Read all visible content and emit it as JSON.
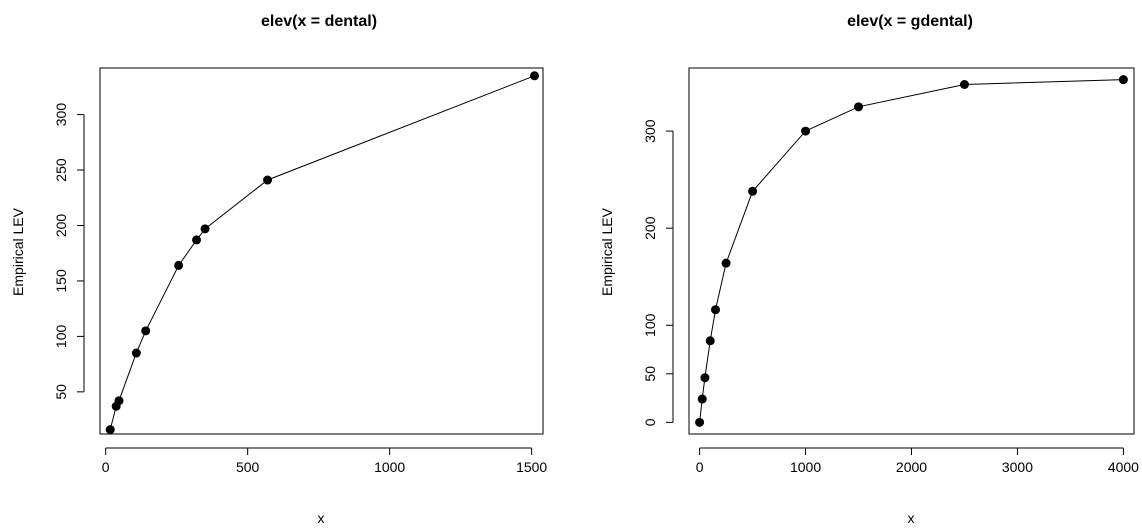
{
  "chart_data": [
    {
      "type": "line",
      "title": "elev(x = dental)",
      "xlabel": "x",
      "ylabel": "Empirical LEV",
      "xlim": [
        -20,
        1540
      ],
      "ylim": [
        12,
        342
      ],
      "xticks": [
        0,
        500,
        1000,
        1500
      ],
      "yticks": [
        50,
        100,
        150,
        200,
        250,
        300
      ],
      "x": [
        16,
        37,
        47,
        108,
        141,
        257,
        320,
        350,
        570,
        1510
      ],
      "y": [
        16,
        37,
        42,
        85,
        105,
        164,
        187,
        197,
        241,
        335
      ],
      "grid": false,
      "markers": "filled-circle"
    },
    {
      "type": "line",
      "title": "elev(x = gdental)",
      "xlabel": "x",
      "ylabel": "Empirical LEV",
      "xlim": [
        -100,
        4100
      ],
      "ylim": [
        -12,
        365
      ],
      "xticks": [
        0,
        1000,
        2000,
        3000,
        4000
      ],
      "yticks": [
        0,
        50,
        100,
        200,
        300
      ],
      "x": [
        0,
        25,
        50,
        100,
        150,
        250,
        500,
        1000,
        1500,
        2500,
        4000
      ],
      "y": [
        0,
        24,
        46,
        84,
        116,
        164,
        238,
        300,
        325,
        348,
        353
      ],
      "grid": false,
      "markers": "filled-circle"
    }
  ]
}
